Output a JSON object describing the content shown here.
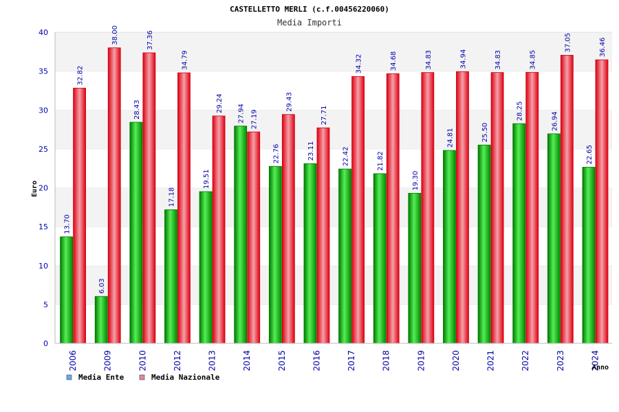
{
  "chart_data": {
    "type": "bar",
    "title": "CASTELLETTO MERLI (c.f.00456220060)",
    "subtitle": "Media Importi",
    "xlabel": "Anno",
    "ylabel": "Euro",
    "ylim": [
      0,
      40
    ],
    "yticks": [
      "0",
      "5",
      "10",
      "15",
      "20",
      "25",
      "30",
      "35",
      "40"
    ],
    "grid": "horizontal bands",
    "legend_position": "bottom-left",
    "categories": [
      "2006",
      "2009",
      "2010",
      "2012",
      "2013",
      "2014",
      "2015",
      "2016",
      "2017",
      "2018",
      "2019",
      "2020",
      "2021",
      "2022",
      "2023",
      "2024"
    ],
    "series": [
      {
        "name": "Media Ente",
        "color": "#00aa00",
        "legend_color": "#66aaee",
        "values": [
          13.7,
          6.03,
          28.43,
          17.18,
          19.51,
          27.94,
          22.76,
          23.11,
          22.42,
          21.82,
          19.3,
          24.81,
          25.5,
          28.25,
          26.94,
          22.65
        ],
        "labels": [
          "13.70",
          "6.03",
          "28.43",
          "17.18",
          "19.51",
          "27.94",
          "22.76",
          "23.11",
          "22.42",
          "21.82",
          "19.30",
          "24.81",
          "25.50",
          "28.25",
          "26.94",
          "22.65"
        ]
      },
      {
        "name": "Media Nazionale",
        "color": "#ee1122",
        "legend_color": "#dd88aa",
        "values": [
          32.82,
          38.0,
          37.36,
          34.79,
          29.24,
          27.19,
          29.43,
          27.71,
          34.32,
          34.68,
          34.83,
          34.94,
          34.83,
          34.85,
          37.05,
          36.46
        ],
        "labels": [
          "32.82",
          "38.00",
          "37.36",
          "34.79",
          "29.24",
          "27.19",
          "29.43",
          "27.71",
          "34.32",
          "34.68",
          "34.83",
          "34.94",
          "34.83",
          "34.85",
          "37.05",
          "36.46"
        ]
      }
    ]
  }
}
